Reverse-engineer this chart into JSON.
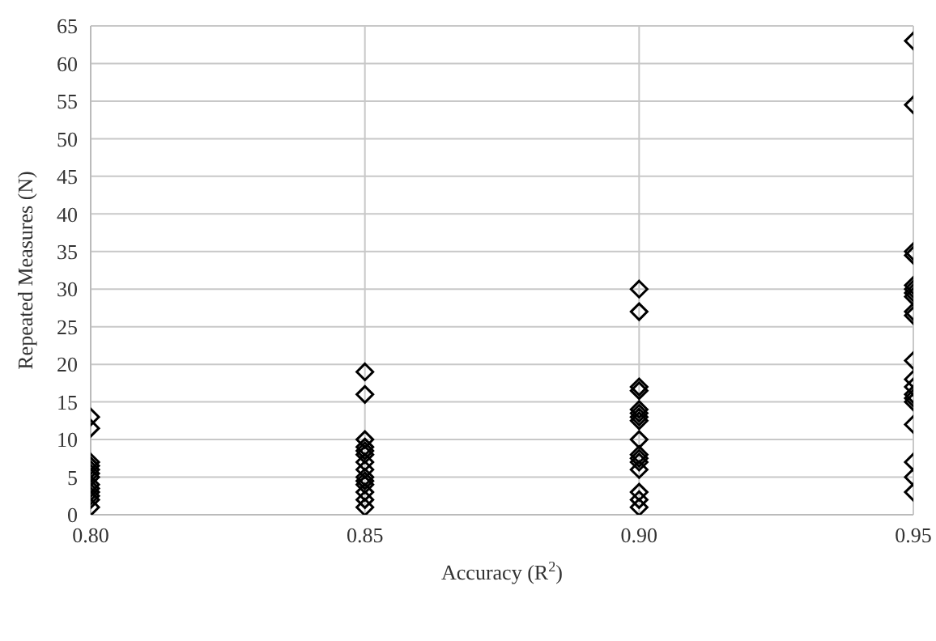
{
  "chart_data": {
    "type": "scatter",
    "xlabel": "Accuracy (R$^{2}$)",
    "ylabel": "Repeated Measures (N)",
    "series": [
      {
        "color": "#000000",
        "x": [
          0.8,
          0.8,
          0.8,
          0.8,
          0.8,
          0.8,
          0.8,
          0.8,
          0.8,
          0.8,
          0.8,
          0.8,
          0.8,
          0.85,
          0.85,
          0.85,
          0.85,
          0.85,
          0.85,
          0.85,
          0.85,
          0.85,
          0.85,
          0.85,
          0.85,
          0.85,
          0.85,
          0.9,
          0.9,
          0.9,
          0.9,
          0.9,
          0.9,
          0.9,
          0.9,
          0.9,
          0.9,
          0.9,
          0.9,
          0.9,
          0.9,
          0.9,
          0.9,
          0.95,
          0.95,
          0.95,
          0.95,
          0.95,
          0.95,
          0.95,
          0.95,
          0.95,
          0.95,
          0.95,
          0.95,
          0.95,
          0.95,
          0.95,
          0.95,
          0.95,
          0.95,
          0.95,
          0.95
        ],
        "values": [
          13,
          11.5,
          7,
          6.5,
          6,
          5.5,
          5,
          4,
          3.5,
          3,
          2.5,
          2,
          1,
          19,
          16,
          10,
          9,
          8.5,
          8,
          7,
          6,
          5,
          4.5,
          4,
          3,
          2,
          1,
          30,
          27,
          17,
          16.5,
          14,
          13.5,
          13,
          12.5,
          10,
          8,
          7.5,
          7,
          6,
          3,
          2,
          1,
          63,
          54.5,
          35,
          34.5,
          30.5,
          30,
          29.5,
          29,
          27,
          26.5,
          20.5,
          18,
          17,
          16,
          15.5,
          15,
          12,
          7,
          5,
          3
        ]
      }
    ],
    "xlim": [
      0.8,
      0.95
    ],
    "xticks": [
      {
        "value": 0.8,
        "label": "0.80"
      },
      {
        "value": 0.85,
        "label": "0.85"
      },
      {
        "value": 0.9,
        "label": "0.90"
      },
      {
        "value": 0.95,
        "label": "0.95"
      }
    ],
    "ylim": [
      0,
      65
    ],
    "yticks": [
      0,
      5,
      10,
      15,
      20,
      25,
      30,
      35,
      40,
      45,
      50,
      55,
      60,
      65
    ],
    "grid": true,
    "marker": "diamond",
    "legend": false
  }
}
